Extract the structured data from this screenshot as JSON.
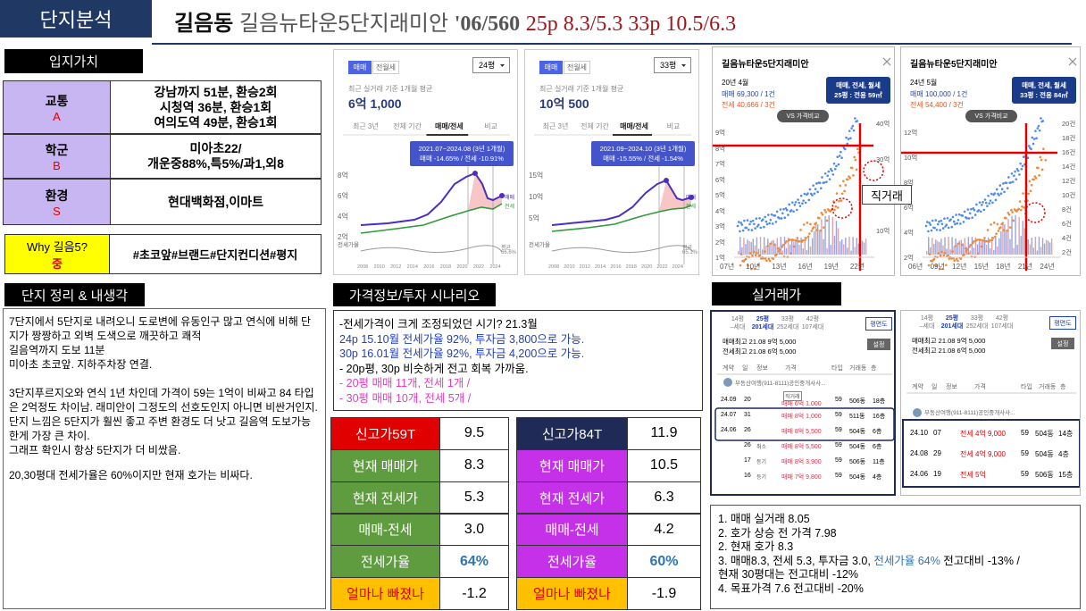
{
  "header": {
    "tab": "단지분석",
    "dong": "길음동",
    "complex": "길음뉴타운5단지래미안",
    "info": "'06/560",
    "prices": "25p 8.3/5.3 33p 10.5/6.3"
  },
  "location": {
    "heading": "입지가치",
    "rows": [
      {
        "label": "교통",
        "grade": "A",
        "lines": [
          "강남까지 51분, 환승2회",
          "시청역 36분, 환승1회",
          "여의도역 49분, 환승1회"
        ]
      },
      {
        "label": "학군",
        "grade": "B",
        "lines": [
          "미아초22/",
          "개운중88%,특5%/과1,외8"
        ]
      },
      {
        "label": "환경",
        "grade": "S",
        "lines": [
          "현대백화점,이마트"
        ]
      }
    ],
    "why": {
      "label": "Why 길음5?",
      "grade": "중",
      "tags": "#초코앞#브랜드#단지컨디션#평지"
    }
  },
  "thoughts": {
    "heading": "단지 정리 & 내생각",
    "paragraphs": [
      "7단지에서 5단지로 내려오니 도로변에 유동인구 많고 연식에 비해 단지가 짱짱하고 외벽 도색으로 깨끗하고 쾌적",
      "길음역까지 도보 11분",
      "미아초 초코앞. 지하주차장 연결.",
      "3단지푸르지오와 연식 1년 차인데 가격이 59는 1억이 비싸고 84 타입은 2억정도 차이남. 래미안이 그정도의 선호도인지 아니면 비싼거인지.  단지 느낌은 5단지가 훨씬 좋고 주변 환경도 더 낫고 길음역 도보가능한게 가장 큰 차이.",
      "그래프 확인시 항상 5단지가 더 비쌌음.",
      "20,30평대 전세가율은 60%이지만 현재 호가는 비싸다."
    ]
  },
  "price_charts": [
    {
      "tabs": [
        "매매",
        "전월세"
      ],
      "size": "24평",
      "subtitle": "최근 실거래 기준 1개월 평균",
      "price": "6억 1,000",
      "periods": [
        "최근 3년",
        "전체 기간",
        "매매/전세",
        "비교"
      ],
      "tooltip": [
        "2021.07~2024.08 (3년 1개월)",
        "매매 -14.65% / 전세 -10.91%"
      ],
      "yticks": [
        "8억",
        "6억",
        "4억",
        "2억"
      ],
      "legend": [
        "매매",
        "전세"
      ],
      "ratio_label": "전세가율",
      "avg": [
        "평균",
        "66.6%"
      ],
      "years": [
        "2008",
        "2010",
        "2012",
        "2014",
        "2016",
        "2018",
        "2020",
        "2022",
        "2024"
      ]
    },
    {
      "tabs": [
        "매매",
        "전월세"
      ],
      "size": "33평",
      "subtitle": "최근 실거래 기준 1개월 평균",
      "price": "10억 500",
      "periods": [
        "최근 3년",
        "전체 기간",
        "매매/전세",
        "비교"
      ],
      "tooltip": [
        "2021.09~2024.10 (3년 1개월)",
        "매매 -15.55% / 전세 -1.54%"
      ],
      "yticks": [
        "15억",
        "10억",
        "5억"
      ],
      "legend": [
        "매매",
        "전세"
      ],
      "ratio_label": "전세가율",
      "avg": [
        "평균",
        "65.1%"
      ],
      "years": [
        "2008",
        "2010",
        "2012",
        "2014",
        "2016",
        "2018",
        "2020",
        "2022",
        "2024"
      ]
    }
  ],
  "trade_charts": [
    {
      "title": "길음뉴타운5단지래미안",
      "date": "20년 4월",
      "sale": "매매 69,300 / 1건",
      "jeonse": "전세 40,666 / 3건",
      "badge": [
        "매매, 전세, 월세",
        "25평 : 전용 59㎡"
      ],
      "compare": "VS 가격비교",
      "yticks": [
        "9억",
        "8억",
        "7억",
        "6억",
        "5억",
        "4억",
        "3억",
        "2억",
        "1억"
      ],
      "y2ticks": [
        "40억",
        "30억",
        "20억",
        "10억"
      ],
      "xticks": [
        "07년",
        "10년",
        "13년",
        "16년",
        "19년",
        "22년"
      ]
    },
    {
      "title": "길음뉴타운5단지래미안",
      "date": "24년 5월",
      "sale": "매매 100,000 / 1건",
      "jeonse": "전세 54,400 / 3건",
      "badge": [
        "매매, 전세, 월세",
        "33평 : 전용 84㎡"
      ],
      "compare": "VS 가격비교",
      "yticks": [
        "12억",
        "10억",
        "8억",
        "6억",
        "4억",
        "2억"
      ],
      "y2ticks": [
        "20건",
        "18건",
        "16건",
        "14건",
        "12건",
        "10건",
        "8건",
        "6건",
        "4건",
        "2건"
      ],
      "xticks": [
        "06년",
        "09년",
        "12년",
        "15년",
        "18년",
        "21년",
        "24년"
      ]
    }
  ],
  "direct_trade_note": "직거래",
  "scenario": {
    "heading": "가격정보/투자 시나리오",
    "lines": [
      {
        "text": "-전세가격이 크게 조정되었던 시기? 21.3월",
        "color": "#000000"
      },
      {
        "text": "24p 15.10월 전세가율 92%, 투자금 3,800으로 가능.",
        "color": "#1f3fbf"
      },
      {
        "text": "30p 16.01월 전세가율 92%, 투자금 4,200으로 가능.",
        "color": "#1f3fbf"
      },
      {
        "text": "- 20p평, 30p 비슷하게 전고 회복 가까움.",
        "color": "#000000"
      },
      {
        "text": "-  20평 매매 11개, 전세 1개 /",
        "color": "#e040c0"
      },
      {
        "text": "-  30평 매매 10개, 전세 5개 /",
        "color": "#e040c0"
      }
    ]
  },
  "summary_tables": [
    {
      "rows": [
        {
          "label": "신고가59T",
          "value": "9.5",
          "color": "#e00000",
          "text_color": "#ffffff"
        },
        {
          "label": "현재 매매가",
          "value": "8.3",
          "color": "#5e9c3f",
          "text_color": "#ffffff"
        },
        {
          "label": "현재 전세가",
          "value": "5.3",
          "color": "#5e9c3f",
          "text_color": "#ffffff"
        },
        {
          "label": "매매-전세",
          "value": "3.0",
          "color": "#5e9c3f",
          "text_color": "#ffffff"
        },
        {
          "label": "전세가율",
          "value": "64%",
          "color": "#5e9c3f",
          "text_color": "#ffffff",
          "value_color": "#2e75b6"
        },
        {
          "label": "얼마나 빠졌나",
          "value": "-1.2",
          "color": "#ffc000",
          "text_color": "#e00000"
        }
      ]
    },
    {
      "rows": [
        {
          "label": "신고가84T",
          "value": "11.9",
          "color": "#1f2a56",
          "text_color": "#ffffff"
        },
        {
          "label": "현재 매매가",
          "value": "10.5",
          "color": "#c531e8",
          "text_color": "#ffffff"
        },
        {
          "label": "현재 전세가",
          "value": "6.3",
          "color": "#c531e8",
          "text_color": "#ffffff"
        },
        {
          "label": "매매-전세",
          "value": "4.2",
          "color": "#c531e8",
          "text_color": "#ffffff"
        },
        {
          "label": "전세가율",
          "value": "60%",
          "color": "#c531e8",
          "text_color": "#ffffff",
          "value_color": "#2e75b6"
        },
        {
          "label": "얼마나 빠졌나",
          "value": "-1.9",
          "color": "#ffc000",
          "text_color": "#e00000"
        }
      ]
    }
  ],
  "transactions": {
    "heading": "실거래가",
    "panels": [
      {
        "tabs": [
          [
            "14평",
            "–세대"
          ],
          [
            "25평",
            "201세대"
          ],
          [
            "33평",
            "252세대"
          ],
          [
            "42평",
            "107세대"
          ]
        ],
        "button": "평면도",
        "highs": [
          "매매최고 21.08 9억 5,000",
          "전세최고 21.08 6억 5,000"
        ],
        "setting": "설정",
        "header": [
          "계약",
          "일",
          "정보",
          "가격",
          "타입",
          "거래동",
          "층"
        ],
        "agent": "부동산여행(911-8111)공인중개사사...",
        "rows": [
          {
            "date": "24.09",
            "day": "20",
            "tag": "직거래",
            "price": "매매 6억 1,000",
            "type": "59",
            "dong": "506동",
            "floor": "18층"
          },
          {
            "date": "24.07",
            "day": "31",
            "price": "매매 8억 1,000",
            "type": "59",
            "dong": "511동",
            "floor": "16층"
          },
          {
            "date": "24.06",
            "day": "26",
            "price": "매매 8억 5,500",
            "type": "59",
            "dong": "504동",
            "floor": "6층"
          },
          {
            "day": "26",
            "tag": "취소",
            "price": "매매 8억 5,500",
            "type": "59",
            "dong": "504동",
            "floor": "6층"
          },
          {
            "day": "17",
            "tag": "등기",
            "price": "매매 8억 3,900",
            "type": "59",
            "dong": "506동",
            "floor": "11층"
          },
          {
            "day": "16",
            "tag": "등기",
            "price": "매매 7억 9,800",
            "type": "59",
            "dong": "504동",
            "floor": "4층"
          }
        ]
      },
      {
        "tabs": [
          [
            "14평",
            "–세대"
          ],
          [
            "25평",
            "201세대"
          ],
          [
            "33평",
            "252세대"
          ],
          [
            "42평",
            "107세대"
          ]
        ],
        "button": "평면도",
        "highs": [
          "매매최고 21.08 9억 5,000",
          "전세최고 21.08 6억 5,000"
        ],
        "setting": "설정",
        "header": [
          "계약",
          "일",
          "정보",
          "가격",
          "타입",
          "거래동",
          "층"
        ],
        "agent": "부동산여행(911-8111)공인중개사사...",
        "rows": [
          {
            "date": "24.10",
            "day": "07",
            "price": "전세 4억 9,000",
            "type": "59",
            "dong": "504동",
            "floor": "14층"
          },
          {
            "date": "24.08",
            "day": "29",
            "price": "전세 4억 9,000",
            "type": "59",
            "dong": "504동",
            "floor": "4층"
          },
          {
            "date": "24.06",
            "day": "19",
            "price": "전세 5억",
            "type": "59",
            "dong": "506동",
            "floor": "15층"
          }
        ]
      }
    ]
  },
  "notes": [
    [
      "1. 매매 실거래 8.05"
    ],
    [
      "2. 호가 상승 전 가격 7.98"
    ],
    [
      "2. 현재 호가 8.3"
    ],
    [
      "3. 매매8.3, 전세 5.3, 투자금 3.0, ",
      "전세가율 64%",
      " 전고대비 -13% /"
    ],
    [
      "현재 30평대는 전고대비 -12%"
    ],
    [
      "4. 목표가격 7.6 전고대비 -20%"
    ]
  ]
}
